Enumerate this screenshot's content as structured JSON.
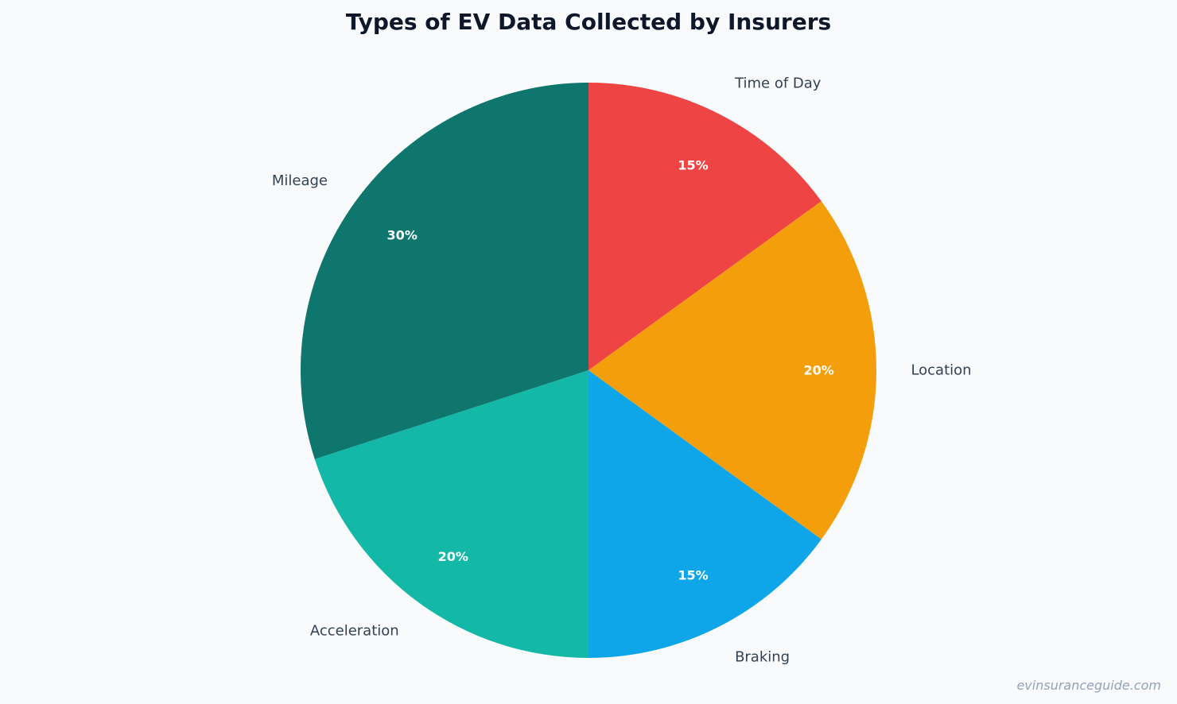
{
  "chart_data": {
    "type": "pie",
    "title": "Types of EV Data Collected by Insurers",
    "categories": [
      "Time of Day",
      "Location",
      "Braking",
      "Acceleration",
      "Mileage"
    ],
    "values": [
      15,
      20,
      15,
      20,
      30
    ],
    "value_labels": [
      "15%",
      "20%",
      "15%",
      "20%",
      "30%"
    ],
    "colors": [
      "#ef4444",
      "#f59e0b",
      "#0ea5e9",
      "#14b8a6",
      "#0f766e"
    ],
    "start_angle": "top",
    "direction": "clockwise",
    "legend": "none"
  },
  "watermark": "evinsuranceguide.com"
}
